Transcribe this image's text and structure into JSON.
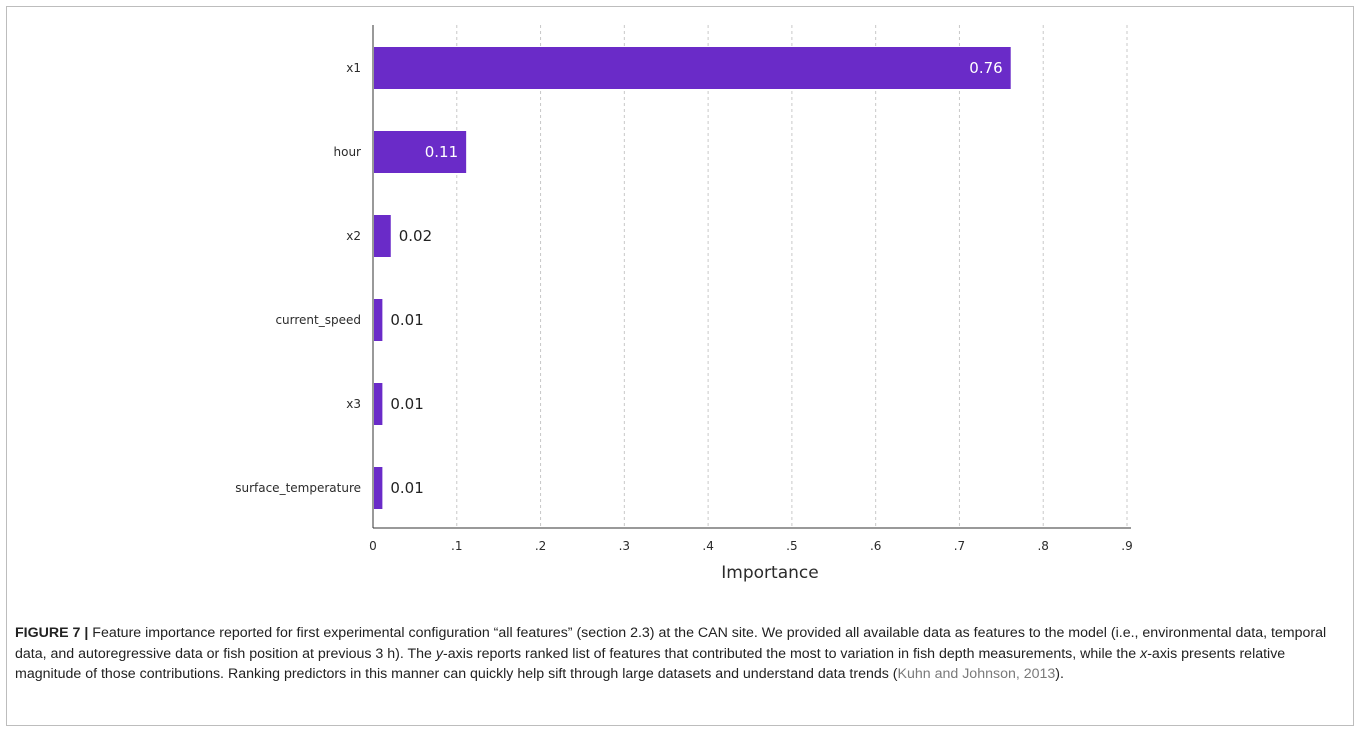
{
  "chart_data": {
    "type": "bar",
    "orientation": "horizontal",
    "categories": [
      "x1",
      "hour",
      "x2",
      "current_speed",
      "x3",
      "surface_temperature"
    ],
    "values": [
      0.76,
      0.11,
      0.02,
      0.01,
      0.01,
      0.01
    ],
    "value_labels": [
      "0.76",
      "0.11",
      "0.02",
      "0.01",
      "0.01",
      "0.01"
    ],
    "xlabel": "Importance",
    "ylabel": "",
    "xlim": [
      0,
      0.9
    ],
    "xticks": [
      0,
      0.1,
      0.2,
      0.3,
      0.4,
      0.5,
      0.6,
      0.7,
      0.8,
      0.9
    ],
    "xtick_labels": [
      "0",
      ".1",
      ".2",
      ".3",
      ".4",
      ".5",
      ".6",
      ".7",
      ".8",
      ".9"
    ],
    "grid": "vertical dashed",
    "bar_color": "#6a2bc8"
  },
  "caption": {
    "label": "FIGURE 7 |",
    "text_before_y": " Feature importance reported for first experimental configuration “all features” (section 2.3) at the CAN site. We provided all available data as features to the model (i.e., environmental data, temporal data, and autoregressive data or fish position at previous 3 h). The ",
    "y_italic": "y",
    "text_between": "-axis reports ranked list of features that contributed the most to variation in fish depth measurements, while the ",
    "x_italic": "x",
    "text_after_x": "-axis presents relative magnitude of those contributions. Ranking predictors in this manner can quickly help sift through large datasets and understand data trends (",
    "citation": "Kuhn and Johnson, 2013",
    "text_end": ")."
  }
}
